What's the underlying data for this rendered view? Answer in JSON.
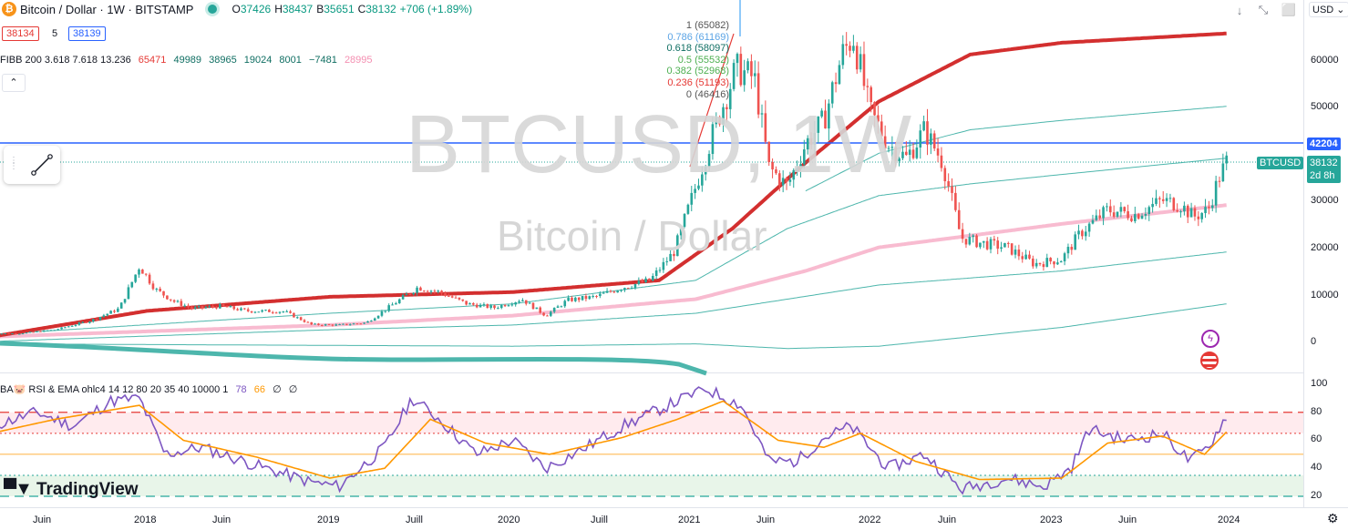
{
  "header": {
    "symbol_title": "Bitcoin / Dollar · 1W · BITSTAMP",
    "ohlc": {
      "o_label": "O",
      "o": "37426",
      "h_label": "H",
      "h": "38437",
      "l_label": "B",
      "l": "35651",
      "c_label": "C",
      "c": "38132",
      "change": "+706 (+1.89%)"
    },
    "bid": "38134",
    "spread": "5",
    "ask": "38139",
    "currency": "USD"
  },
  "fib_legend": {
    "label": "FIBB 200 3.618 7.618 13.236",
    "values": [
      "65471",
      "49989",
      "38965",
      "19024",
      "8001",
      "−7481",
      "28995"
    ],
    "colors": [
      "#e53935",
      "#0f6e62",
      "#0f6e62",
      "#0f6e62",
      "#0f6e62",
      "#0f6e62",
      "#f48fb1"
    ]
  },
  "fib_levels": [
    {
      "label": "1 (65082)",
      "color": "#555555"
    },
    {
      "label": "0.786 (61169)",
      "color": "#5ba4e5"
    },
    {
      "label": "0.618 (58097)",
      "color": "#0f6e62"
    },
    {
      "label": "0.5 (55532)",
      "color": "#4caf50"
    },
    {
      "label": "0.382 (52968)",
      "color": "#4caf50"
    },
    {
      "label": "0.236 (51193)",
      "color": "#e53935"
    },
    {
      "label": "0 (46416)",
      "color": "#555555"
    }
  ],
  "watermark": {
    "line1": "BTCUSD, 1W",
    "line2": "Bitcoin / Dollar"
  },
  "tags": {
    "hline_value": "42204",
    "symbol": "BTCUSD",
    "last": "38132",
    "countdown": "2d 8h"
  },
  "rsi_legend": {
    "label": "BA🐷 RSI & EMA ohlc4 14 12 80 20 35 40 10000 1",
    "v1": "78",
    "v2": "66",
    "v3": "∅",
    "v4": "∅"
  },
  "logo": {
    "text": "TradingView"
  },
  "colors": {
    "up": "#26a69a",
    "down": "#ef5350",
    "ma_red": "#d32f2f",
    "ma_pink": "#f8bbd0",
    "band": "#4db6ac",
    "hline": "#2962ff",
    "rsi": "#7e57c2",
    "rsi_ema": "#ff9800"
  },
  "chart_data": [
    {
      "type": "candlestick",
      "title": "Bitcoin / Dollar · 1W · BITSTAMP",
      "x_ticks": [
        "Juin",
        "2018",
        "Juin",
        "2019",
        "Juill",
        "2020",
        "Juill",
        "2021",
        "Juin",
        "2022",
        "Juin",
        "2023",
        "Juin",
        "2024"
      ],
      "y_ticks": [
        "60000",
        "50000",
        "40000",
        "30000",
        "20000",
        "10000",
        "0"
      ],
      "ylim": [
        -5000,
        68000
      ],
      "price_series": [
        {
          "t": 2017.3,
          "v": 1700
        },
        {
          "t": 2017.5,
          "v": 2500
        },
        {
          "t": 2017.7,
          "v": 4500
        },
        {
          "t": 2017.85,
          "v": 7000
        },
        {
          "t": 2017.96,
          "v": 16000
        },
        {
          "t": 2018.05,
          "v": 11000
        },
        {
          "t": 2018.15,
          "v": 8500
        },
        {
          "t": 2018.25,
          "v": 7000
        },
        {
          "t": 2018.4,
          "v": 7500
        },
        {
          "t": 2018.55,
          "v": 6500
        },
        {
          "t": 2018.75,
          "v": 6400
        },
        {
          "t": 2018.9,
          "v": 3600
        },
        {
          "t": 2019.05,
          "v": 3500
        },
        {
          "t": 2019.2,
          "v": 4000
        },
        {
          "t": 2019.35,
          "v": 8000
        },
        {
          "t": 2019.48,
          "v": 11500
        },
        {
          "t": 2019.6,
          "v": 10500
        },
        {
          "t": 2019.75,
          "v": 8000
        },
        {
          "t": 2019.9,
          "v": 7200
        },
        {
          "t": 2020.05,
          "v": 9000
        },
        {
          "t": 2020.18,
          "v": 5500
        },
        {
          "t": 2020.3,
          "v": 8800
        },
        {
          "t": 2020.45,
          "v": 9500
        },
        {
          "t": 2020.6,
          "v": 11500
        },
        {
          "t": 2020.75,
          "v": 13000
        },
        {
          "t": 2020.88,
          "v": 19000
        },
        {
          "t": 2021.0,
          "v": 33000
        },
        {
          "t": 2021.1,
          "v": 45000
        },
        {
          "t": 2021.22,
          "v": 58000
        },
        {
          "t": 2021.32,
          "v": 56000
        },
        {
          "t": 2021.4,
          "v": 37000
        },
        {
          "t": 2021.5,
          "v": 33000
        },
        {
          "t": 2021.6,
          "v": 42000
        },
        {
          "t": 2021.7,
          "v": 47000
        },
        {
          "t": 2021.8,
          "v": 61000
        },
        {
          "t": 2021.86,
          "v": 65000
        },
        {
          "t": 2021.95,
          "v": 49000
        },
        {
          "t": 2022.05,
          "v": 42000
        },
        {
          "t": 2022.15,
          "v": 39000
        },
        {
          "t": 2022.25,
          "v": 45000
        },
        {
          "t": 2022.35,
          "v": 38000
        },
        {
          "t": 2022.45,
          "v": 22000
        },
        {
          "t": 2022.55,
          "v": 21000
        },
        {
          "t": 2022.7,
          "v": 20000
        },
        {
          "t": 2022.85,
          "v": 16500
        },
        {
          "t": 2023.0,
          "v": 17500
        },
        {
          "t": 2023.1,
          "v": 23000
        },
        {
          "t": 2023.25,
          "v": 28000
        },
        {
          "t": 2023.4,
          "v": 27000
        },
        {
          "t": 2023.55,
          "v": 30000
        },
        {
          "t": 2023.65,
          "v": 29000
        },
        {
          "t": 2023.72,
          "v": 26500
        },
        {
          "t": 2023.8,
          "v": 28000
        },
        {
          "t": 2023.86,
          "v": 35000
        },
        {
          "t": 2023.9,
          "v": 38132
        }
      ],
      "ma_red": [
        {
          "t": 2017.15,
          "v": 1000
        },
        {
          "t": 2018.0,
          "v": 6500
        },
        {
          "t": 2019.0,
          "v": 9500
        },
        {
          "t": 2020.0,
          "v": 10500
        },
        {
          "t": 2020.8,
          "v": 13000
        },
        {
          "t": 2021.2,
          "v": 24000
        },
        {
          "t": 2021.6,
          "v": 38000
        },
        {
          "t": 2022.0,
          "v": 51000
        },
        {
          "t": 2022.5,
          "v": 61000
        },
        {
          "t": 2023.0,
          "v": 63500
        },
        {
          "t": 2023.9,
          "v": 65471
        }
      ],
      "ma_pink": [
        {
          "t": 2017.15,
          "v": 1000
        },
        {
          "t": 2019.0,
          "v": 3500
        },
        {
          "t": 2020.0,
          "v": 5500
        },
        {
          "t": 2021.0,
          "v": 9000
        },
        {
          "t": 2021.6,
          "v": 15000
        },
        {
          "t": 2022.0,
          "v": 20000
        },
        {
          "t": 2022.5,
          "v": 22500
        },
        {
          "t": 2023.0,
          "v": 25000
        },
        {
          "t": 2023.9,
          "v": 28995
        }
      ],
      "band_upper": [
        {
          "t": 2021.6,
          "v": 32000
        },
        {
          "t": 2022.0,
          "v": 40000
        },
        {
          "t": 2022.5,
          "v": 45000
        },
        {
          "t": 2023.0,
          "v": 47000
        },
        {
          "t": 2023.9,
          "v": 49989
        }
      ],
      "band_mid": [
        {
          "t": 2017.15,
          "v": 1500
        },
        {
          "t": 2019.0,
          "v": 6000
        },
        {
          "t": 2020.0,
          "v": 8000
        },
        {
          "t": 2021.0,
          "v": 13000
        },
        {
          "t": 2021.5,
          "v": 24000
        },
        {
          "t": 2022.0,
          "v": 31000
        },
        {
          "t": 2022.5,
          "v": 33500
        },
        {
          "t": 2023.0,
          "v": 35500
        },
        {
          "t": 2023.9,
          "v": 38965
        }
      ],
      "band_low": [
        {
          "t": 2017.15,
          "v": 0
        },
        {
          "t": 2019.0,
          "v": 2500
        },
        {
          "t": 2020.0,
          "v": 3500
        },
        {
          "t": 2021.0,
          "v": 6000
        },
        {
          "t": 2022.0,
          "v": 12000
        },
        {
          "t": 2023.0,
          "v": 15000
        },
        {
          "t": 2023.9,
          "v": 19024
        }
      ],
      "band_bottom": [
        {
          "t": 2017.15,
          "v": -500
        },
        {
          "t": 2020.0,
          "v": -1000
        },
        {
          "t": 2021.0,
          "v": -500
        },
        {
          "t": 2021.5,
          "v": -1500
        },
        {
          "t": 2022.0,
          "v": -1000
        },
        {
          "t": 2023.0,
          "v": 3000
        },
        {
          "t": 2023.9,
          "v": 8001
        }
      ],
      "hline": 42204,
      "last_price": 38132
    },
    {
      "type": "line",
      "title": "RSI & EMA",
      "y_ticks": [
        "100",
        "80",
        "60",
        "40",
        "20"
      ],
      "ylim": [
        15,
        102
      ],
      "levels": [
        80,
        65,
        50,
        35,
        20
      ],
      "rsi": [
        {
          "t": 2017.15,
          "v": 70
        },
        {
          "t": 2017.4,
          "v": 80
        },
        {
          "t": 2017.6,
          "v": 70
        },
        {
          "t": 2017.8,
          "v": 88
        },
        {
          "t": 2017.96,
          "v": 90
        },
        {
          "t": 2018.1,
          "v": 50
        },
        {
          "t": 2018.3,
          "v": 55
        },
        {
          "t": 2018.6,
          "v": 42
        },
        {
          "t": 2018.9,
          "v": 30
        },
        {
          "t": 2019.05,
          "v": 27
        },
        {
          "t": 2019.3,
          "v": 55
        },
        {
          "t": 2019.45,
          "v": 90
        },
        {
          "t": 2019.6,
          "v": 75
        },
        {
          "t": 2019.8,
          "v": 50
        },
        {
          "t": 2020.0,
          "v": 60
        },
        {
          "t": 2020.18,
          "v": 40
        },
        {
          "t": 2020.4,
          "v": 55
        },
        {
          "t": 2020.6,
          "v": 70
        },
        {
          "t": 2020.85,
          "v": 85
        },
        {
          "t": 2021.05,
          "v": 97
        },
        {
          "t": 2021.25,
          "v": 85
        },
        {
          "t": 2021.4,
          "v": 45
        },
        {
          "t": 2021.55,
          "v": 45
        },
        {
          "t": 2021.7,
          "v": 62
        },
        {
          "t": 2021.85,
          "v": 70
        },
        {
          "t": 2022.05,
          "v": 40
        },
        {
          "t": 2022.25,
          "v": 50
        },
        {
          "t": 2022.45,
          "v": 25
        },
        {
          "t": 2022.7,
          "v": 33
        },
        {
          "t": 2022.9,
          "v": 27
        },
        {
          "t": 2023.05,
          "v": 40
        },
        {
          "t": 2023.15,
          "v": 68
        },
        {
          "t": 2023.35,
          "v": 60
        },
        {
          "t": 2023.55,
          "v": 65
        },
        {
          "t": 2023.7,
          "v": 45
        },
        {
          "t": 2023.8,
          "v": 55
        },
        {
          "t": 2023.9,
          "v": 78
        }
      ],
      "ema": [
        {
          "t": 2017.15,
          "v": 65
        },
        {
          "t": 2017.5,
          "v": 75
        },
        {
          "t": 2017.96,
          "v": 85
        },
        {
          "t": 2018.2,
          "v": 60
        },
        {
          "t": 2018.6,
          "v": 48
        },
        {
          "t": 2019.0,
          "v": 33
        },
        {
          "t": 2019.3,
          "v": 40
        },
        {
          "t": 2019.55,
          "v": 75
        },
        {
          "t": 2019.85,
          "v": 58
        },
        {
          "t": 2020.2,
          "v": 50
        },
        {
          "t": 2020.6,
          "v": 62
        },
        {
          "t": 2020.9,
          "v": 75
        },
        {
          "t": 2021.15,
          "v": 88
        },
        {
          "t": 2021.45,
          "v": 60
        },
        {
          "t": 2021.7,
          "v": 55
        },
        {
          "t": 2021.9,
          "v": 65
        },
        {
          "t": 2022.2,
          "v": 45
        },
        {
          "t": 2022.55,
          "v": 32
        },
        {
          "t": 2023.0,
          "v": 33
        },
        {
          "t": 2023.25,
          "v": 58
        },
        {
          "t": 2023.55,
          "v": 63
        },
        {
          "t": 2023.78,
          "v": 50
        },
        {
          "t": 2023.9,
          "v": 66
        }
      ]
    }
  ]
}
